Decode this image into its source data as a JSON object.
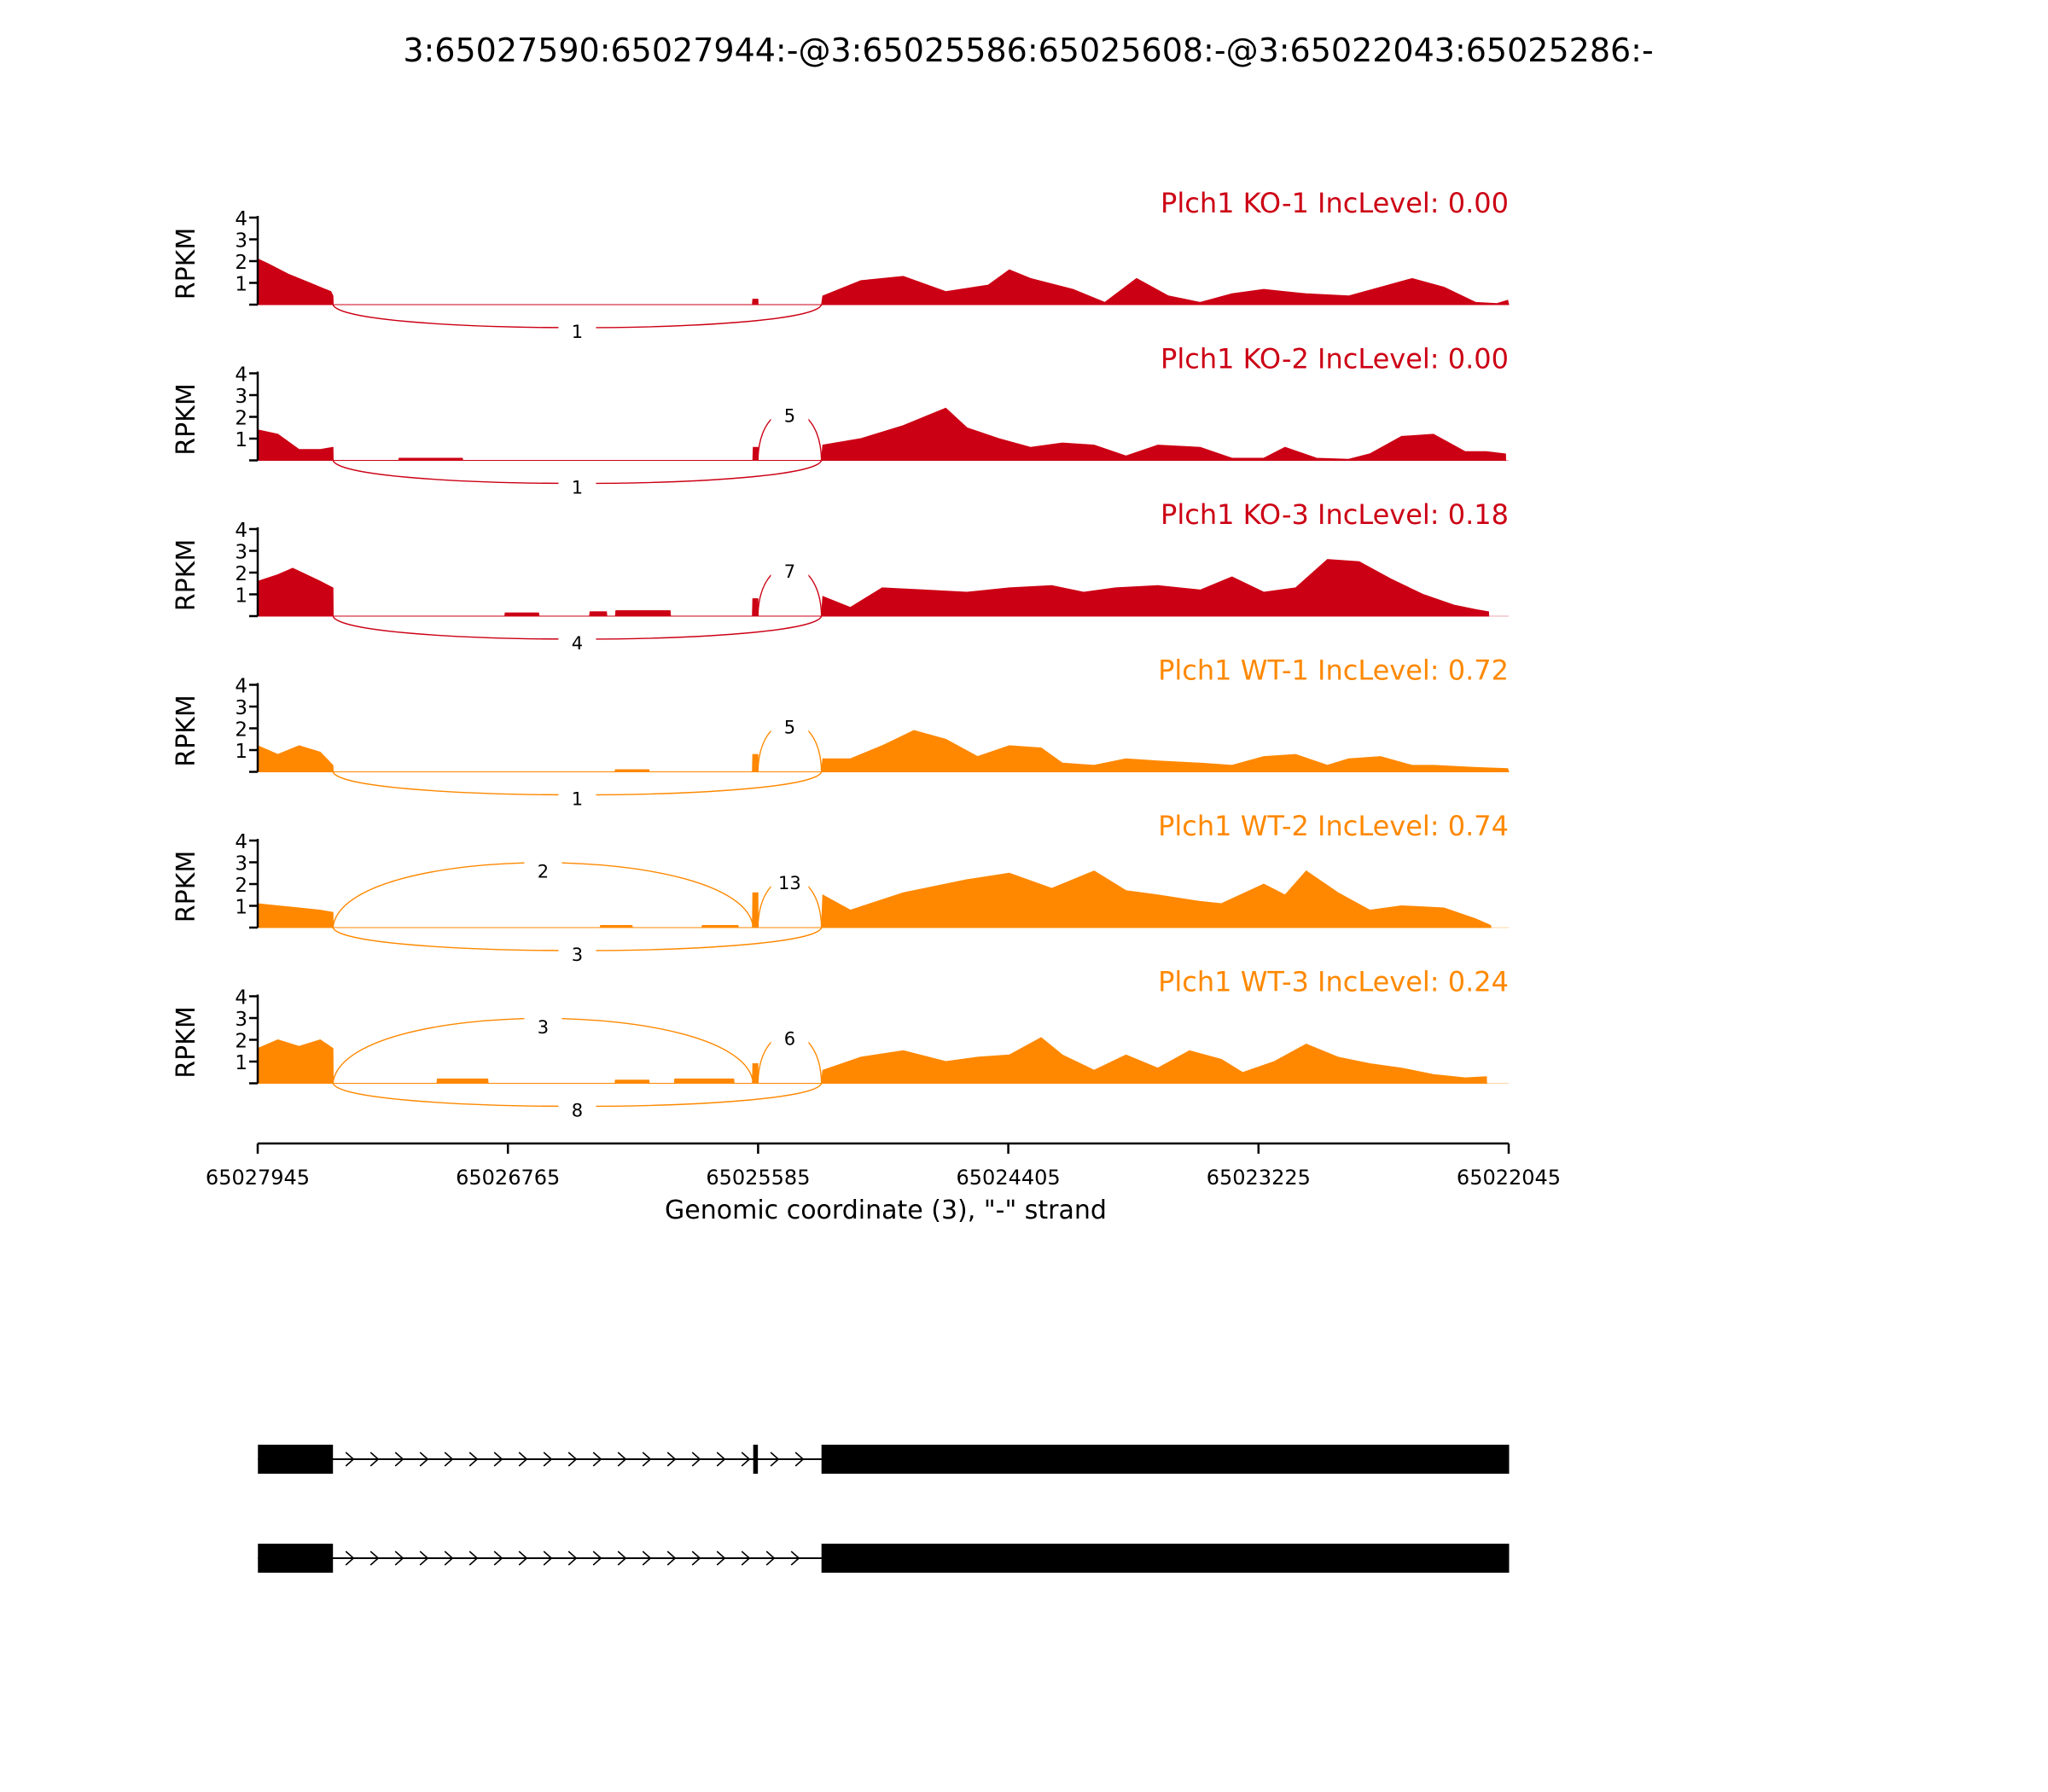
{
  "title": "3:65027590:65027944:-@3:65025586:65025608:-@3:65022043:65025286:-",
  "colors": {
    "ko": "#cc0014",
    "wt": "#ff8800",
    "axis": "#000000",
    "gene": "#000000"
  },
  "chart_data": {
    "type": "area",
    "title": "3:65027590:65027944:-@3:65025586:65025608:-@3:65022043:65025286:-",
    "ylabel": "RPKM",
    "xlabel": "Genomic coordinate (3), \"-\" strand",
    "ylim": [
      0,
      4
    ],
    "yticks": [
      "1",
      "2",
      "3",
      "4"
    ],
    "xlim": [
      65027945,
      65022045
    ],
    "xticks": [
      "65027945",
      "65026765",
      "65025585",
      "65024405",
      "65023225",
      "65022045"
    ],
    "exons": [
      {
        "name": "upstream",
        "start": 65027944,
        "end": 65027590
      },
      {
        "name": "skipped",
        "start": 65025608,
        "end": 65025586
      },
      {
        "name": "downstream",
        "start": 65025286,
        "end": 65022043
      }
    ],
    "samples": [
      {
        "label": "Plch1 KO-1 IncLevel: 0.00",
        "group": "ko",
        "junctions": [
          {
            "from": 65027590,
            "to": 65025286,
            "count": "1",
            "side": "below"
          }
        ],
        "coverage": [
          [
            65027945,
            2.1
          ],
          [
            65027900,
            1.9
          ],
          [
            65027800,
            1.4
          ],
          [
            65027700,
            1.0
          ],
          [
            65027600,
            0.6
          ],
          [
            65027590,
            0.4
          ],
          [
            65027589,
            0
          ],
          [
            65025612,
            0
          ],
          [
            65025610,
            0.25
          ],
          [
            65025586,
            0.25
          ],
          [
            65025585,
            0
          ],
          [
            65025286,
            0
          ],
          [
            65025280,
            0.4
          ],
          [
            65025100,
            1.1
          ],
          [
            65024900,
            1.3
          ],
          [
            65024700,
            0.6
          ],
          [
            65024500,
            0.9
          ],
          [
            65024400,
            1.6
          ],
          [
            65024300,
            1.2
          ],
          [
            65024100,
            0.7
          ],
          [
            65023950,
            0.1
          ],
          [
            65023800,
            1.2
          ],
          [
            65023650,
            0.4
          ],
          [
            65023500,
            0.1
          ],
          [
            65023350,
            0.5
          ],
          [
            65023200,
            0.7
          ],
          [
            65023000,
            0.5
          ],
          [
            65022800,
            0.4
          ],
          [
            65022650,
            0.8
          ],
          [
            65022500,
            1.2
          ],
          [
            65022350,
            0.8
          ],
          [
            65022200,
            0.1
          ],
          [
            65022100,
            0.05
          ],
          [
            65022050,
            0.2
          ],
          [
            65022045,
            0
          ]
        ]
      },
      {
        "label": "Plch1 KO-2 IncLevel: 0.00",
        "group": "ko",
        "junctions": [
          {
            "from": 65027590,
            "to": 65025286,
            "count": "1",
            "side": "below"
          },
          {
            "from": 65025586,
            "to": 65025286,
            "count": "5",
            "side": "above"
          }
        ],
        "coverage": [
          [
            65027945,
            1.4
          ],
          [
            65027850,
            1.2
          ],
          [
            65027750,
            0.5
          ],
          [
            65027650,
            0.5
          ],
          [
            65027590,
            0.6
          ],
          [
            65027589,
            0
          ],
          [
            65027280,
            0
          ],
          [
            65027278,
            0.1
          ],
          [
            65026980,
            0.1
          ],
          [
            65026978,
            0
          ],
          [
            65025610,
            0
          ],
          [
            65025608,
            0.6
          ],
          [
            65025586,
            0.6
          ],
          [
            65025585,
            0
          ],
          [
            65025286,
            0
          ],
          [
            65025280,
            0.7
          ],
          [
            65025100,
            1.0
          ],
          [
            65024900,
            1.6
          ],
          [
            65024800,
            2.0
          ],
          [
            65024700,
            2.4
          ],
          [
            65024600,
            1.5
          ],
          [
            65024450,
            1.0
          ],
          [
            65024300,
            0.6
          ],
          [
            65024150,
            0.8
          ],
          [
            65024000,
            0.7
          ],
          [
            65023850,
            0.2
          ],
          [
            65023700,
            0.7
          ],
          [
            65023500,
            0.6
          ],
          [
            65023350,
            0.1
          ],
          [
            65023200,
            0.1
          ],
          [
            65023100,
            0.6
          ],
          [
            65022950,
            0.1
          ],
          [
            65022800,
            0.05
          ],
          [
            65022700,
            0.3
          ],
          [
            65022550,
            1.1
          ],
          [
            65022400,
            1.2
          ],
          [
            65022250,
            0.4
          ],
          [
            65022150,
            0.4
          ],
          [
            65022060,
            0.3
          ],
          [
            65022059,
            0
          ]
        ]
      },
      {
        "label": "Plch1 KO-3 IncLevel: 0.18",
        "group": "ko",
        "junctions": [
          {
            "from": 65027590,
            "to": 65025286,
            "count": "4",
            "side": "below"
          },
          {
            "from": 65025586,
            "to": 65025286,
            "count": "7",
            "side": "above"
          }
        ],
        "coverage": [
          [
            65027945,
            1.6
          ],
          [
            65027850,
            1.9
          ],
          [
            65027780,
            2.2
          ],
          [
            65027650,
            1.6
          ],
          [
            65027590,
            1.3
          ],
          [
            65027589,
            0
          ],
          [
            65026780,
            0
          ],
          [
            65026778,
            0.15
          ],
          [
            65026620,
            0.15
          ],
          [
            65026618,
            0
          ],
          [
            65026380,
            0
          ],
          [
            65026378,
            0.2
          ],
          [
            65026300,
            0.2
          ],
          [
            65026298,
            0
          ],
          [
            65026258,
            0
          ],
          [
            65026256,
            0.25
          ],
          [
            65026000,
            0.25
          ],
          [
            65025998,
            0
          ],
          [
            65025612,
            0
          ],
          [
            65025610,
            0.8
          ],
          [
            65025586,
            0.8
          ],
          [
            65025585,
            0
          ],
          [
            65025286,
            0
          ],
          [
            65025280,
            0.9
          ],
          [
            65025150,
            0.4
          ],
          [
            65025000,
            1.3
          ],
          [
            65024800,
            1.2
          ],
          [
            65024600,
            1.1
          ],
          [
            65024400,
            1.3
          ],
          [
            65024200,
            1.4
          ],
          [
            65024050,
            1.1
          ],
          [
            65023900,
            1.3
          ],
          [
            65023700,
            1.4
          ],
          [
            65023500,
            1.2
          ],
          [
            65023350,
            1.8
          ],
          [
            65023200,
            1.1
          ],
          [
            65023050,
            1.3
          ],
          [
            65022900,
            2.6
          ],
          [
            65022750,
            2.5
          ],
          [
            65022600,
            1.7
          ],
          [
            65022450,
            1.0
          ],
          [
            65022300,
            0.5
          ],
          [
            65022200,
            0.3
          ],
          [
            65022140,
            0.2
          ],
          [
            65022139,
            0
          ]
        ]
      },
      {
        "label": "Plch1 WT-1 IncLevel: 0.72",
        "group": "wt",
        "junctions": [
          {
            "from": 65027590,
            "to": 65025286,
            "count": "1",
            "side": "below"
          },
          {
            "from": 65025586,
            "to": 65025286,
            "count": "5",
            "side": "above"
          }
        ],
        "coverage": [
          [
            65027945,
            1.2
          ],
          [
            65027850,
            0.8
          ],
          [
            65027750,
            1.2
          ],
          [
            65027650,
            0.9
          ],
          [
            65027590,
            0.3
          ],
          [
            65027589,
            0
          ],
          [
            65026260,
            0
          ],
          [
            65026258,
            0.1
          ],
          [
            65026100,
            0.1
          ],
          [
            65026098,
            0
          ],
          [
            65025612,
            0
          ],
          [
            65025610,
            0.8
          ],
          [
            65025586,
            0.8
          ],
          [
            65025585,
            0
          ],
          [
            65025286,
            0
          ],
          [
            65025280,
            0.6
          ],
          [
            65025150,
            0.6
          ],
          [
            65025000,
            1.2
          ],
          [
            65024850,
            1.9
          ],
          [
            65024700,
            1.5
          ],
          [
            65024550,
            0.7
          ],
          [
            65024400,
            1.2
          ],
          [
            65024250,
            1.1
          ],
          [
            65024150,
            0.4
          ],
          [
            65024000,
            0.3
          ],
          [
            65023850,
            0.6
          ],
          [
            65023700,
            0.5
          ],
          [
            65023500,
            0.4
          ],
          [
            65023350,
            0.3
          ],
          [
            65023200,
            0.7
          ],
          [
            65023050,
            0.8
          ],
          [
            65022900,
            0.3
          ],
          [
            65022800,
            0.6
          ],
          [
            65022650,
            0.7
          ],
          [
            65022500,
            0.3
          ],
          [
            65022400,
            0.3
          ],
          [
            65022200,
            0.2
          ],
          [
            65022050,
            0.15
          ],
          [
            65022045,
            0
          ]
        ]
      },
      {
        "label": "Plch1 WT-2 IncLevel: 0.74",
        "group": "wt",
        "junctions": [
          {
            "from": 65027590,
            "to": 65025608,
            "count": "2",
            "side": "above"
          },
          {
            "from": 65027590,
            "to": 65025286,
            "count": "3",
            "side": "below"
          },
          {
            "from": 65025586,
            "to": 65025286,
            "count": "13",
            "side": "above"
          }
        ],
        "coverage": [
          [
            65027945,
            1.1
          ],
          [
            65027850,
            1.0
          ],
          [
            65027750,
            0.9
          ],
          [
            65027650,
            0.8
          ],
          [
            65027590,
            0.7
          ],
          [
            65027589,
            0
          ],
          [
            65026330,
            0
          ],
          [
            65026328,
            0.1
          ],
          [
            65026180,
            0.1
          ],
          [
            65026178,
            0
          ],
          [
            65025850,
            0
          ],
          [
            65025848,
            0.1
          ],
          [
            65025680,
            0.1
          ],
          [
            65025678,
            0
          ],
          [
            65025612,
            0
          ],
          [
            65025610,
            1.6
          ],
          [
            65025586,
            1.6
          ],
          [
            65025585,
            0
          ],
          [
            65025286,
            0
          ],
          [
            65025280,
            1.5
          ],
          [
            65025150,
            0.8
          ],
          [
            65024900,
            1.6
          ],
          [
            65024600,
            2.2
          ],
          [
            65024400,
            2.5
          ],
          [
            65024200,
            1.8
          ],
          [
            65024000,
            2.6
          ],
          [
            65023850,
            1.7
          ],
          [
            65023700,
            1.5
          ],
          [
            65023500,
            1.2
          ],
          [
            65023400,
            1.1
          ],
          [
            65023200,
            2.0
          ],
          [
            65023100,
            1.5
          ],
          [
            65023000,
            2.6
          ],
          [
            65022850,
            1.6
          ],
          [
            65022700,
            0.8
          ],
          [
            65022550,
            1.0
          ],
          [
            65022350,
            0.9
          ],
          [
            65022200,
            0.4
          ],
          [
            65022130,
            0.1
          ],
          [
            65022129,
            0
          ]
        ]
      },
      {
        "label": "Plch1 WT-3 IncLevel: 0.24",
        "group": "wt",
        "junctions": [
          {
            "from": 65027590,
            "to": 65025608,
            "count": "3",
            "side": "above"
          },
          {
            "from": 65027590,
            "to": 65025286,
            "count": "8",
            "side": "below"
          },
          {
            "from": 65025586,
            "to": 65025286,
            "count": "6",
            "side": "above"
          }
        ],
        "coverage": [
          [
            65027945,
            1.6
          ],
          [
            65027850,
            2.0
          ],
          [
            65027750,
            1.7
          ],
          [
            65027650,
            2.0
          ],
          [
            65027590,
            1.6
          ],
          [
            65027589,
            0
          ],
          [
            65027100,
            0
          ],
          [
            65027098,
            0.2
          ],
          [
            65026860,
            0.2
          ],
          [
            65026858,
            0
          ],
          [
            65026260,
            0
          ],
          [
            65026258,
            0.15
          ],
          [
            65026100,
            0.15
          ],
          [
            65026098,
            0
          ],
          [
            65025980,
            0
          ],
          [
            65025978,
            0.2
          ],
          [
            65025700,
            0.2
          ],
          [
            65025698,
            0
          ],
          [
            65025612,
            0
          ],
          [
            65025610,
            0.9
          ],
          [
            65025586,
            0.9
          ],
          [
            65025585,
            0
          ],
          [
            65025286,
            0
          ],
          [
            65025280,
            0.6
          ],
          [
            65025100,
            1.2
          ],
          [
            65024900,
            1.5
          ],
          [
            65024700,
            1.0
          ],
          [
            65024550,
            1.2
          ],
          [
            65024400,
            1.3
          ],
          [
            65024250,
            2.1
          ],
          [
            65024150,
            1.3
          ],
          [
            65024000,
            0.6
          ],
          [
            65023850,
            1.3
          ],
          [
            65023700,
            0.7
          ],
          [
            65023550,
            1.5
          ],
          [
            65023400,
            1.1
          ],
          [
            65023300,
            0.5
          ],
          [
            65023150,
            1.0
          ],
          [
            65023000,
            1.8
          ],
          [
            65022850,
            1.2
          ],
          [
            65022700,
            0.9
          ],
          [
            65022550,
            0.7
          ],
          [
            65022400,
            0.4
          ],
          [
            65022250,
            0.25
          ],
          [
            65022150,
            0.3
          ],
          [
            65022149,
            0
          ]
        ]
      }
    ],
    "transcripts": [
      {
        "name": "inclusion",
        "exons": [
          "upstream",
          "skipped",
          "downstream"
        ]
      },
      {
        "name": "exclusion",
        "exons": [
          "upstream",
          "downstream"
        ]
      }
    ]
  }
}
